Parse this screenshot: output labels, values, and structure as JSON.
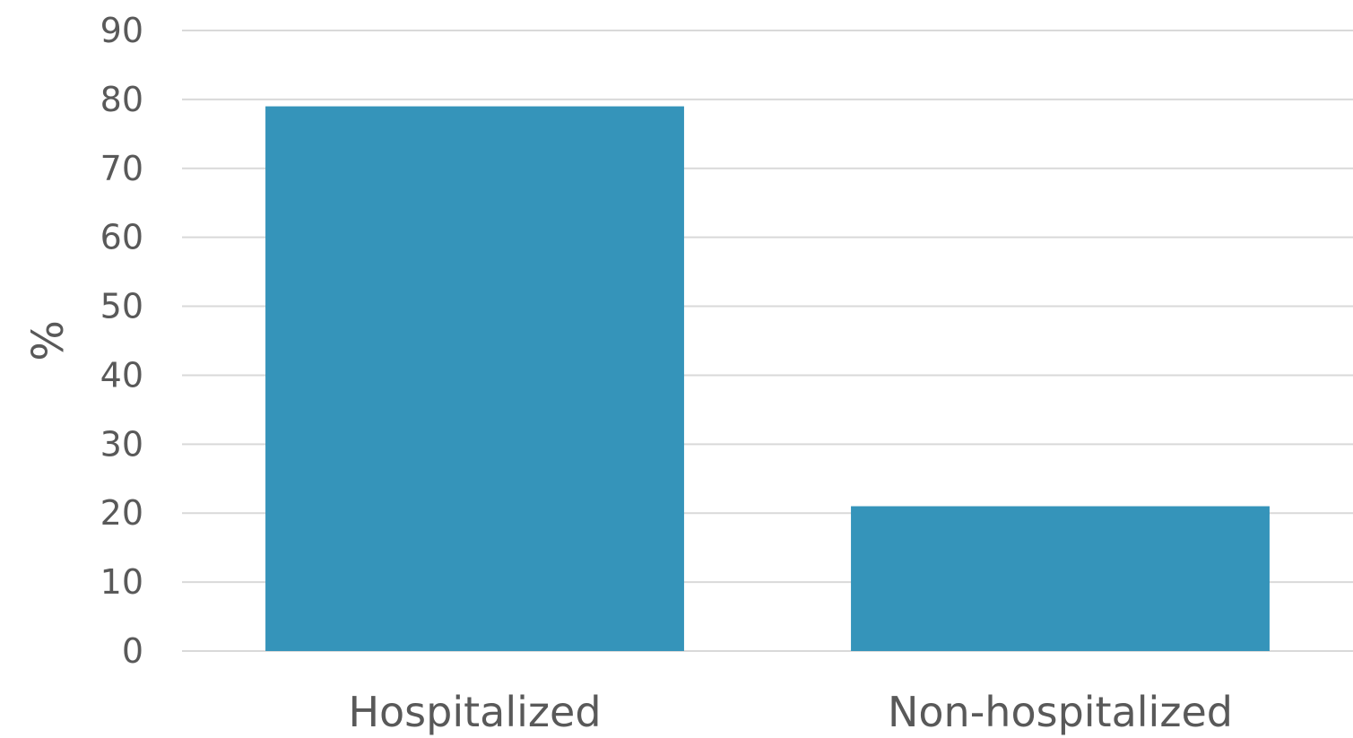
{
  "chart_data": {
    "type": "bar",
    "categories": [
      "Hospitalized",
      "Non-hospitalized"
    ],
    "values": [
      79,
      21
    ],
    "title": "",
    "xlabel": "",
    "ylabel": "%",
    "ylim": [
      0,
      90
    ],
    "yticks": [
      0,
      10,
      20,
      30,
      40,
      50,
      60,
      70,
      80,
      90
    ],
    "grid": true,
    "legend": "none",
    "bar_color": "#3594BA"
  }
}
